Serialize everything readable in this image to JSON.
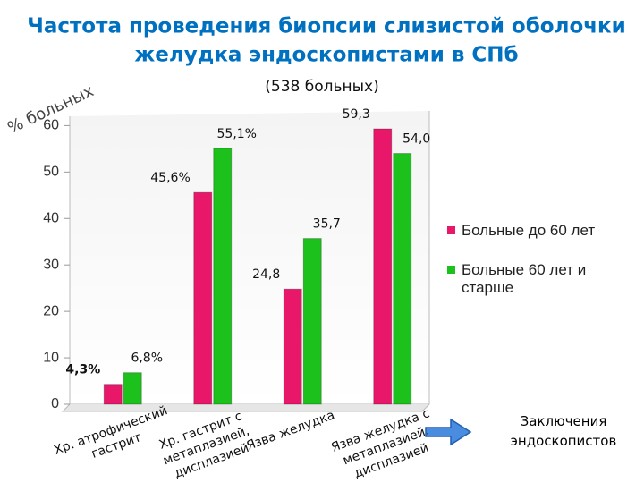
{
  "chart_data": {
    "type": "bar",
    "title": [
      "Частота проведения биопсии слизистой оболочки",
      "желудка эндоскопистами в СПб"
    ],
    "subtitle": "(538 больных)",
    "y_label": "% больных",
    "categories": [
      [
        "Хр. атрофический",
        "гастрит"
      ],
      [
        "Хр. гастрит с",
        "метаплазией,",
        "дисплазией"
      ],
      [
        "Язва желудка"
      ],
      [
        "Язва желудка с",
        "метаплазией,",
        "дисплазией"
      ]
    ],
    "series": [
      {
        "name": "Больные до 60 лет",
        "color": "#e8176a",
        "values": [
          4.3,
          45.6,
          24.8,
          59.3
        ],
        "value_labels": [
          "4,3%",
          "45,6%",
          "24,8",
          "59,3"
        ]
      },
      {
        "name": "Больные 60 лет и старше",
        "color": "#1cc11c",
        "values": [
          6.8,
          55.1,
          35.7,
          54.0
        ],
        "value_labels": [
          "6,8%",
          "55,1%",
          "35,7",
          "54,0"
        ]
      }
    ],
    "ylim": [
      0,
      62
    ],
    "yticks": [
      0,
      10,
      20,
      30,
      40,
      50,
      60
    ],
    "grid": false,
    "legend": "right",
    "annotation": [
      "Заключения",
      "эндоскопистов"
    ]
  }
}
